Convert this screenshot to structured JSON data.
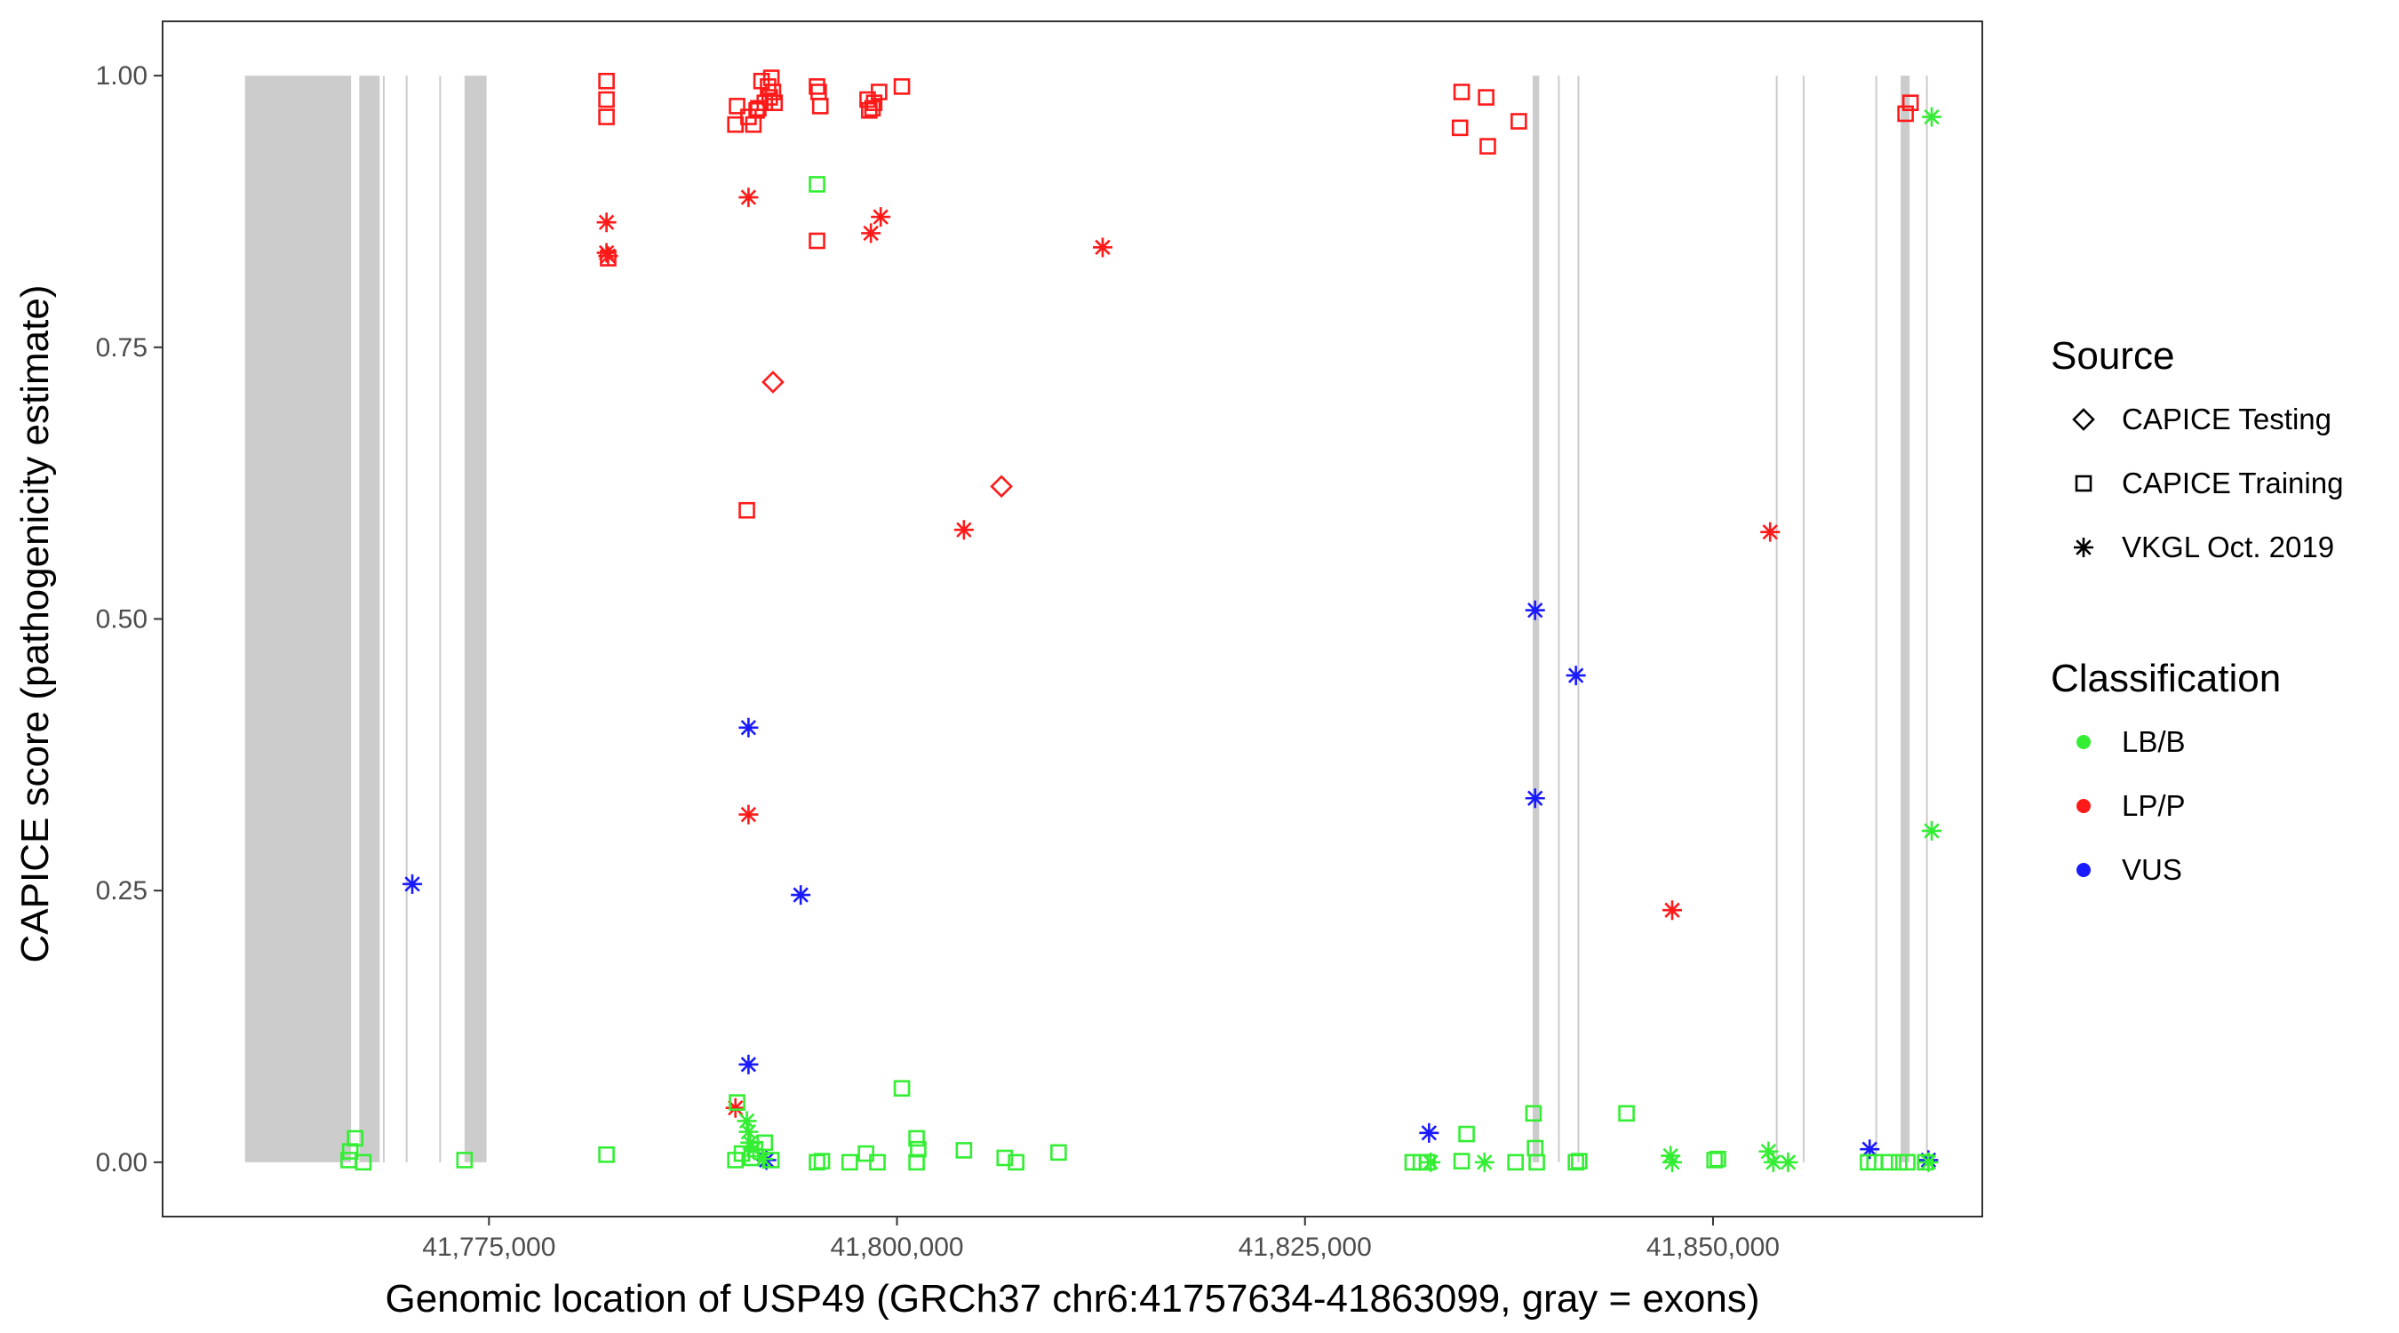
{
  "chart_data": {
    "type": "scatter",
    "xlabel": "Genomic location of USP49 (GRCh37 chr6:41757634-41863099, gray = exons)",
    "ylabel": "CAPICE score (pathogenicity estimate)",
    "xlim": [
      41755000,
      41866500
    ],
    "ylim": [
      -0.05,
      1.05
    ],
    "x_ticks": [
      41775000,
      41800000,
      41825000,
      41850000
    ],
    "x_tick_labels": [
      "41,775,000",
      "41,800,000",
      "41,825,000",
      "41,850,000"
    ],
    "y_ticks": [
      0,
      0.25,
      0.5,
      0.75,
      1
    ],
    "y_tick_labels": [
      "0.00",
      "0.25",
      "0.50",
      "0.75",
      "1.00"
    ],
    "grid": false,
    "colors": {
      "LB/B": "#33ee33",
      "LP/P": "#ff1a1a",
      "VUS": "#1a1aff",
      "exon": "#cccccc"
    },
    "exons": [
      [
        41760050,
        41766550
      ],
      [
        41767050,
        41768300
      ],
      [
        41768500,
        41768600
      ],
      [
        41769900,
        41770000
      ],
      [
        41771950,
        41772050
      ],
      [
        41773500,
        41774850
      ],
      [
        41838950,
        41839350
      ],
      [
        41840500,
        41840600
      ],
      [
        41841700,
        41841800
      ],
      [
        41853850,
        41853950
      ],
      [
        41855500,
        41855600
      ],
      [
        41859950,
        41860050
      ],
      [
        41861500,
        41862050
      ],
      [
        41863050,
        41863150
      ]
    ],
    "legend": {
      "source": {
        "title": "Source",
        "entries": [
          "CAPICE Testing",
          "CAPICE Training",
          "VKGL Oct. 2019"
        ]
      },
      "classification": {
        "title": "Classification",
        "entries": [
          "LB/B",
          "LP/P",
          "VUS"
        ]
      }
    },
    "series": [
      {
        "name": "CAPICE Testing - LP/P",
        "shape": "diamond",
        "class": "LP/P",
        "points": [
          [
            41792400,
            0.718
          ],
          [
            41806400,
            0.622
          ]
        ]
      },
      {
        "name": "CAPICE Training - LP/P",
        "shape": "square",
        "class": "LP/P",
        "points": [
          [
            41782200,
            0.995
          ],
          [
            41782200,
            0.978
          ],
          [
            41782200,
            0.962
          ],
          [
            41782300,
            0.832
          ],
          [
            41790200,
            0.972
          ],
          [
            41790100,
            0.955
          ],
          [
            41790900,
            0.962
          ],
          [
            41791200,
            0.955
          ],
          [
            41791400,
            0.968
          ],
          [
            41791500,
            0.97
          ],
          [
            41791700,
            0.995
          ],
          [
            41791900,
            0.975
          ],
          [
            41792100,
            0.99
          ],
          [
            41792200,
            0.98
          ],
          [
            41792300,
            0.998
          ],
          [
            41792400,
            0.985
          ],
          [
            41792500,
            0.975
          ],
          [
            41795100,
            0.99
          ],
          [
            41795200,
            0.985
          ],
          [
            41795300,
            0.972
          ],
          [
            41798200,
            0.978
          ],
          [
            41798300,
            0.968
          ],
          [
            41798500,
            0.97
          ],
          [
            41798600,
            0.975
          ],
          [
            41798900,
            0.985
          ],
          [
            41800300,
            0.99
          ],
          [
            41795100,
            0.848
          ],
          [
            41790800,
            0.6
          ],
          [
            41834600,
            0.985
          ],
          [
            41834500,
            0.952
          ],
          [
            41836100,
            0.98
          ],
          [
            41836200,
            0.935
          ],
          [
            41838100,
            0.958
          ],
          [
            41861800,
            0.965
          ],
          [
            41862100,
            0.975
          ]
        ]
      },
      {
        "name": "VKGL Oct. 2019 - LP/P",
        "shape": "asterisk",
        "class": "LP/P",
        "points": [
          [
            41782200,
            0.865
          ],
          [
            41782200,
            0.837
          ],
          [
            41782300,
            0.834
          ],
          [
            41790900,
            0.888
          ],
          [
            41798400,
            0.855
          ],
          [
            41799000,
            0.87
          ],
          [
            41812600,
            0.842
          ],
          [
            41804100,
            0.582
          ],
          [
            41790900,
            0.32
          ],
          [
            41790100,
            0.05
          ],
          [
            41853500,
            0.58
          ],
          [
            41847500,
            0.232
          ]
        ]
      },
      {
        "name": "VKGL Oct. 2019 - VUS",
        "shape": "asterisk",
        "class": "VUS",
        "points": [
          [
            41770300,
            0.256
          ],
          [
            41790900,
            0.4
          ],
          [
            41794100,
            0.246
          ],
          [
            41790900,
            0.09
          ],
          [
            41839100,
            0.508
          ],
          [
            41841600,
            0.448
          ],
          [
            41839100,
            0.335
          ],
          [
            41832600,
            0.027
          ],
          [
            41859600,
            0.012
          ],
          [
            41792000,
            0.002
          ],
          [
            41863200,
            0.002
          ]
        ]
      },
      {
        "name": "CAPICE Training - LB/B",
        "shape": "square",
        "class": "LB/B",
        "points": [
          [
            41795100,
            0.9
          ],
          [
            41800300,
            0.068
          ],
          [
            41790200,
            0.055
          ],
          [
            41766800,
            0.022
          ],
          [
            41766500,
            0.01
          ],
          [
            41766400,
            0.002
          ],
          [
            41767300,
            0.0
          ],
          [
            41773500,
            0.002
          ],
          [
            41782200,
            0.007
          ],
          [
            41790100,
            0.002
          ],
          [
            41790500,
            0.008
          ],
          [
            41791100,
            0.004
          ],
          [
            41791300,
            0.012
          ],
          [
            41791900,
            0.018
          ],
          [
            41792300,
            0.002
          ],
          [
            41795100,
            0.0
          ],
          [
            41795400,
            0.001
          ],
          [
            41797100,
            0.0
          ],
          [
            41798100,
            0.008
          ],
          [
            41798800,
            0.0
          ],
          [
            41801200,
            0.022
          ],
          [
            41801300,
            0.012
          ],
          [
            41801200,
            0.0
          ],
          [
            41804100,
            0.011
          ],
          [
            41806600,
            0.004
          ],
          [
            41807300,
            0.0
          ],
          [
            41809900,
            0.009
          ],
          [
            41831600,
            0.0
          ],
          [
            41832100,
            0.0
          ],
          [
            41832500,
            0.0
          ],
          [
            41834600,
            0.001
          ],
          [
            41834900,
            0.026
          ],
          [
            41837900,
            0.0
          ],
          [
            41839000,
            0.045
          ],
          [
            41839100,
            0.013
          ],
          [
            41839200,
            0.0
          ],
          [
            41841600,
            0.0
          ],
          [
            41841800,
            0.001
          ],
          [
            41844700,
            0.045
          ],
          [
            41850100,
            0.002
          ],
          [
            41850300,
            0.003
          ],
          [
            41859500,
            0.0
          ],
          [
            41859900,
            0.0
          ],
          [
            41860800,
            0.0
          ],
          [
            41861400,
            0.0
          ],
          [
            41861900,
            0.0
          ],
          [
            41863000,
            0.0
          ]
        ]
      },
      {
        "name": "VKGL Oct. 2019 - LB/B",
        "shape": "asterisk",
        "class": "LB/B",
        "points": [
          [
            41863400,
            0.962
          ],
          [
            41863400,
            0.305
          ],
          [
            41790800,
            0.038
          ],
          [
            41790900,
            0.028
          ],
          [
            41791000,
            0.018
          ],
          [
            41791200,
            0.012
          ],
          [
            41791800,
            0.003
          ],
          [
            41832700,
            0.0
          ],
          [
            41836000,
            0.0
          ],
          [
            41847400,
            0.006
          ],
          [
            41847500,
            0.0
          ],
          [
            41853400,
            0.01
          ],
          [
            41853700,
            0.0
          ],
          [
            41854600,
            0.0
          ],
          [
            41863200,
            0.0
          ]
        ]
      }
    ]
  }
}
